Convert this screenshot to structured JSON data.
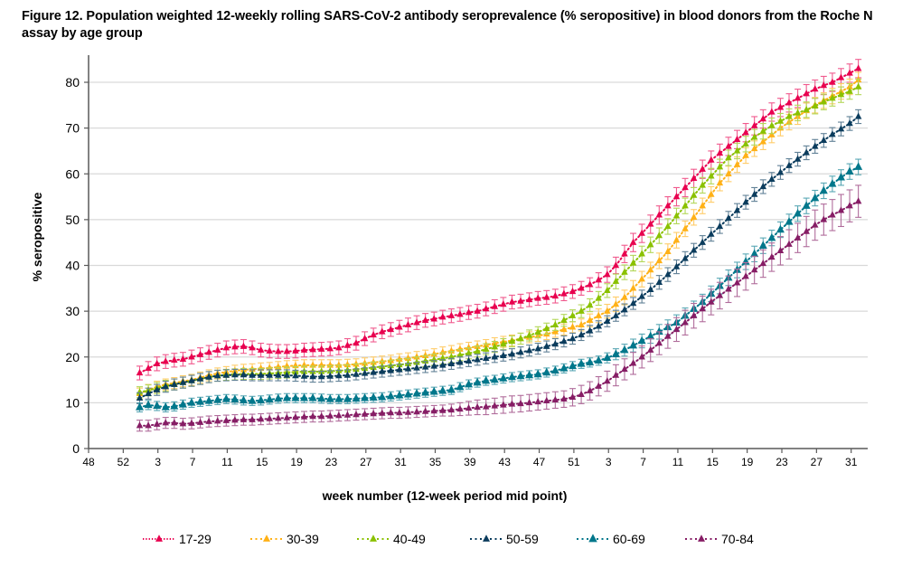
{
  "chart_data": {
    "type": "line",
    "title": "Figure 12. Population weighted 12-weekly rolling SARS-CoV-2 antibody seroprevalence (% seropositive) in blood donors from the Roche N assay by age group",
    "xlabel": "week number (12-week period mid point)",
    "ylabel": "% seropositive",
    "ylim": [
      0,
      80
    ],
    "yticks": [
      "0",
      "10",
      "20",
      "30",
      "40",
      "50",
      "60",
      "70",
      "80"
    ],
    "xticks": [
      "48",
      "52",
      "3",
      "7",
      "11",
      "15",
      "19",
      "23",
      "27",
      "31",
      "35",
      "39",
      "43",
      "47",
      "51",
      "3",
      "7",
      "11",
      "15",
      "19",
      "23",
      "27",
      "31"
    ],
    "grid": "horizontal",
    "legend_position": "bottom",
    "markers": "triangle",
    "error_bars": true,
    "series": [
      {
        "name": "17-29",
        "color": "#e8004f",
        "values": [
          16.5,
          17.5,
          18.5,
          19,
          19.3,
          19.5,
          20,
          20.5,
          21,
          21.5,
          22,
          22.2,
          22.3,
          22,
          21.5,
          21.3,
          21.2,
          21.2,
          21.3,
          21.5,
          21.6,
          21.7,
          21.8,
          22,
          22.5,
          23,
          24,
          24.8,
          25.5,
          26,
          26.5,
          27,
          27.5,
          28,
          28.3,
          28.7,
          29,
          29.3,
          29.7,
          30,
          30.5,
          31,
          31.5,
          32,
          32.2,
          32.5,
          32.8,
          33,
          33.3,
          33.8,
          34.3,
          35,
          35.8,
          36.8,
          38,
          40,
          42.5,
          45,
          47,
          49,
          51,
          53,
          55,
          57,
          59,
          61,
          63,
          64.5,
          66,
          67.5,
          69,
          70.5,
          72,
          73.5,
          74.5,
          75.5,
          76.5,
          77.5,
          78.5,
          79.3,
          80,
          81,
          82,
          83
        ],
        "err": [
          1.5,
          1.5,
          1.5,
          1.5,
          1.5,
          1.5,
          1.5,
          1.5,
          1.5,
          1.5,
          1.5,
          1.5,
          1.5,
          1.5,
          1.5,
          1.5,
          1.5,
          1.5,
          1.5,
          1.5,
          1.5,
          1.5,
          1.5,
          1.5,
          1.5,
          1.5,
          1.5,
          1.5,
          1.5,
          1.5,
          1.5,
          1.5,
          1.5,
          1.5,
          1.5,
          1.5,
          1.5,
          1.5,
          1.5,
          1.5,
          1.5,
          1.5,
          1.5,
          1.5,
          1.5,
          1.5,
          1.5,
          1.5,
          1.5,
          1.5,
          1.5,
          1.5,
          1.5,
          1.6,
          1.7,
          1.8,
          1.9,
          2,
          2,
          2,
          2,
          2,
          2,
          2,
          2,
          2,
          2,
          2,
          2,
          2,
          2,
          2,
          2,
          2,
          2,
          2,
          2,
          2,
          2,
          2,
          2,
          2,
          2,
          2
        ]
      },
      {
        "name": "30-39",
        "color": "#ffb117",
        "values": [
          12,
          12.8,
          13.5,
          14,
          14.3,
          14.7,
          15,
          15.5,
          16,
          16.4,
          16.7,
          17,
          17.2,
          17.3,
          17.5,
          17.6,
          17.8,
          18,
          18.1,
          18.2,
          18.2,
          18.2,
          18.2,
          18.2,
          18.3,
          18.4,
          18.6,
          18.8,
          19,
          19.2,
          19.5,
          19.7,
          20,
          20.3,
          20.6,
          21,
          21.3,
          21.7,
          22,
          22.3,
          22.6,
          23,
          23.3,
          23.6,
          24,
          24.3,
          24.6,
          25,
          25.5,
          26,
          26.5,
          27,
          28,
          29,
          30,
          31.5,
          33,
          35,
          37,
          39,
          41,
          43,
          45.5,
          48,
          50.5,
          53,
          55.5,
          58,
          60,
          62,
          64,
          65.5,
          67,
          68.5,
          70,
          71.3,
          72.5,
          73.8,
          75,
          76,
          77,
          78,
          79,
          80.5
        ],
        "err": [
          1.2,
          1.2,
          1.2,
          1.2,
          1.2,
          1.2,
          1.2,
          1.2,
          1.2,
          1.2,
          1.2,
          1.2,
          1.2,
          1.2,
          1.2,
          1.2,
          1.2,
          1.2,
          1.2,
          1.2,
          1.2,
          1.2,
          1.2,
          1.2,
          1.2,
          1.2,
          1.2,
          1.2,
          1.2,
          1.2,
          1.2,
          1.2,
          1.2,
          1.2,
          1.2,
          1.2,
          1.2,
          1.2,
          1.2,
          1.2,
          1.2,
          1.2,
          1.2,
          1.2,
          1.2,
          1.2,
          1.2,
          1.2,
          1.2,
          1.2,
          1.2,
          1.3,
          1.4,
          1.5,
          1.5,
          1.6,
          1.6,
          1.7,
          1.7,
          1.7,
          1.7,
          1.7,
          1.7,
          1.7,
          1.7,
          1.7,
          1.7,
          1.7,
          1.7,
          1.7,
          1.7,
          1.7,
          1.7,
          1.7,
          1.7,
          1.7,
          1.7,
          1.7,
          1.7,
          1.7,
          1.7,
          1.7,
          1.7,
          1.7
        ]
      },
      {
        "name": "40-49",
        "color": "#8ac100",
        "values": [
          12.3,
          12.7,
          13.2,
          13.7,
          14,
          14.4,
          14.8,
          15.2,
          15.6,
          15.9,
          16.1,
          16.2,
          16.3,
          16.3,
          16.3,
          16.4,
          16.5,
          16.6,
          16.7,
          16.8,
          16.8,
          16.8,
          16.9,
          17,
          17.1,
          17.3,
          17.5,
          17.7,
          17.9,
          18.1,
          18.3,
          18.5,
          18.8,
          19.1,
          19.4,
          19.7,
          20,
          20.4,
          20.8,
          21.2,
          21.7,
          22.2,
          22.8,
          23.4,
          24,
          24.7,
          25.4,
          26.2,
          27,
          28,
          29,
          30,
          31.3,
          32.8,
          34.5,
          36.5,
          38.5,
          40.5,
          42.5,
          44.5,
          46.5,
          48.5,
          50.8,
          53,
          55.3,
          57.5,
          59.5,
          61.5,
          63.5,
          65,
          66.5,
          68,
          69.3,
          70.5,
          71.5,
          72.5,
          73.3,
          74,
          74.8,
          75.7,
          76.5,
          77.3,
          78,
          79
        ],
        "err": [
          1.2,
          1.2,
          1.2,
          1.2,
          1.2,
          1.2,
          1.2,
          1.2,
          1.2,
          1.2,
          1.2,
          1.2,
          1.2,
          1.2,
          1.2,
          1.2,
          1.2,
          1.2,
          1.2,
          1.2,
          1.2,
          1.2,
          1.2,
          1.2,
          1.2,
          1.2,
          1.2,
          1.2,
          1.2,
          1.2,
          1.2,
          1.2,
          1.2,
          1.2,
          1.2,
          1.2,
          1.2,
          1.2,
          1.2,
          1.2,
          1.2,
          1.2,
          1.2,
          1.2,
          1.2,
          1.2,
          1.2,
          1.2,
          1.2,
          1.3,
          1.3,
          1.4,
          1.4,
          1.5,
          1.5,
          1.6,
          1.6,
          1.7,
          1.7,
          1.7,
          1.7,
          1.7,
          1.7,
          1.7,
          1.7,
          1.7,
          1.7,
          1.7,
          1.7,
          1.7,
          1.7,
          1.7,
          1.7,
          1.7,
          1.7,
          1.7,
          1.7,
          1.7,
          1.7,
          1.7,
          1.7,
          1.7,
          1.7,
          1.7
        ]
      },
      {
        "name": "50-59",
        "color": "#0b3c5d",
        "values": [
          11,
          12,
          12.8,
          13.5,
          14,
          14.4,
          14.8,
          15.2,
          15.6,
          15.9,
          16,
          16.1,
          16.1,
          16,
          16,
          16,
          16,
          16,
          15.9,
          15.8,
          15.7,
          15.7,
          15.8,
          15.9,
          16,
          16.2,
          16.4,
          16.6,
          16.8,
          17,
          17.2,
          17.4,
          17.6,
          17.8,
          18,
          18.2,
          18.5,
          18.8,
          19.1,
          19.4,
          19.7,
          20,
          20.3,
          20.6,
          21,
          21.4,
          21.8,
          22.3,
          22.8,
          23.4,
          24,
          24.8,
          25.7,
          26.7,
          27.8,
          29,
          30.3,
          31.7,
          33.2,
          34.7,
          36.3,
          38,
          39.7,
          41.5,
          43.3,
          45,
          46.8,
          48.5,
          50.3,
          52,
          53.8,
          55.5,
          57.2,
          58.8,
          60.3,
          61.8,
          63.2,
          64.6,
          66,
          67.3,
          68.6,
          69.8,
          71,
          72.5
        ],
        "err": [
          1.2,
          1.2,
          1.2,
          1.2,
          1.2,
          1.2,
          1.2,
          1.2,
          1.2,
          1.2,
          1.2,
          1.2,
          1.2,
          1.2,
          1.2,
          1.2,
          1.2,
          1.2,
          1.2,
          1.2,
          1.2,
          1.2,
          1.2,
          1.2,
          1.2,
          1.2,
          1.2,
          1.2,
          1.2,
          1.2,
          1.2,
          1.2,
          1.2,
          1.2,
          1.2,
          1.2,
          1.2,
          1.2,
          1.2,
          1.2,
          1.2,
          1.2,
          1.2,
          1.2,
          1.2,
          1.2,
          1.2,
          1.2,
          1.2,
          1.2,
          1.2,
          1.2,
          1.2,
          1.2,
          1.2,
          1.2,
          1.3,
          1.3,
          1.4,
          1.4,
          1.5,
          1.5,
          1.5,
          1.5,
          1.5,
          1.5,
          1.5,
          1.5,
          1.5,
          1.5,
          1.5,
          1.5,
          1.5,
          1.5,
          1.5,
          1.5,
          1.5,
          1.5,
          1.5,
          1.5,
          1.5,
          1.5,
          1.5,
          1.5
        ]
      },
      {
        "name": "60-69",
        "color": "#00778b",
        "values": [
          9,
          9.5,
          9.3,
          9,
          9.2,
          9.6,
          10,
          10.2,
          10.4,
          10.6,
          10.8,
          10.7,
          10.5,
          10.4,
          10.5,
          10.7,
          10.9,
          11,
          11,
          11,
          11,
          10.9,
          10.8,
          10.8,
          10.8,
          10.9,
          11,
          11.1,
          11.2,
          11.4,
          11.6,
          11.8,
          12,
          12.2,
          12.4,
          12.6,
          12.8,
          13.4,
          14,
          14.4,
          14.8,
          15,
          15.3,
          15.6,
          15.8,
          16,
          16.2,
          16.6,
          17,
          17.5,
          18,
          18.5,
          18.8,
          19.2,
          19.8,
          20.6,
          21.5,
          22.5,
          23.5,
          24.5,
          25.5,
          26.5,
          27.5,
          29,
          30.5,
          32,
          33.8,
          35.5,
          37.3,
          39,
          40.8,
          42.5,
          44.3,
          46,
          47.8,
          49.5,
          51.3,
          53,
          54.7,
          56.3,
          57.8,
          59.2,
          60.5,
          61.5
        ],
        "err": [
          1,
          1,
          1,
          1,
          1,
          1,
          1,
          1,
          1,
          1,
          1,
          1,
          1,
          1,
          1,
          1,
          1,
          1,
          1,
          1,
          1,
          1,
          1,
          1,
          1,
          1,
          1,
          1,
          1,
          1,
          1,
          1,
          1,
          1,
          1,
          1,
          1,
          1,
          1,
          1,
          1,
          1,
          1,
          1,
          1,
          1,
          1,
          1,
          1,
          1,
          1,
          1,
          1,
          1,
          1.1,
          1.2,
          1.3,
          1.4,
          1.5,
          1.5,
          1.6,
          1.6,
          1.7,
          1.7,
          1.7,
          1.7,
          1.7,
          1.7,
          1.7,
          1.7,
          1.7,
          1.7,
          1.7,
          1.7,
          1.7,
          1.7,
          1.7,
          1.7,
          1.7,
          1.7,
          1.7,
          1.7,
          1.7,
          1.7
        ]
      },
      {
        "name": "70-84",
        "color": "#861d65",
        "values": [
          5,
          5,
          5.3,
          5.6,
          5.6,
          5.4,
          5.5,
          5.7,
          5.9,
          6,
          6.1,
          6.2,
          6.3,
          6.3,
          6.4,
          6.5,
          6.6,
          6.7,
          6.8,
          6.9,
          7,
          7,
          7.1,
          7.2,
          7.3,
          7.4,
          7.5,
          7.6,
          7.7,
          7.8,
          7.8,
          7.9,
          8,
          8.1,
          8.2,
          8.3,
          8.4,
          8.6,
          8.8,
          9,
          9.1,
          9.3,
          9.5,
          9.7,
          9.8,
          10,
          10.2,
          10.4,
          10.6,
          10.8,
          11.2,
          11.8,
          12.6,
          13.6,
          14.7,
          16,
          17.3,
          18.6,
          20,
          21.5,
          23,
          24.5,
          26,
          27.5,
          29,
          30.5,
          32,
          33.4,
          34.8,
          36.2,
          37.6,
          39,
          40.4,
          41.8,
          43.2,
          44.6,
          46,
          47.4,
          48.8,
          50,
          51,
          52,
          53,
          54
        ],
        "err": [
          1.2,
          1.2,
          1.2,
          1.2,
          1.2,
          1.2,
          1.2,
          1.2,
          1.2,
          1.2,
          1.2,
          1.2,
          1.2,
          1.2,
          1.2,
          1.2,
          1.2,
          1.2,
          1.2,
          1.2,
          1.2,
          1.2,
          1.2,
          1.2,
          1.2,
          1.2,
          1.2,
          1.2,
          1.2,
          1.2,
          1.2,
          1.2,
          1.2,
          1.2,
          1.2,
          1.2,
          1.3,
          1.4,
          1.5,
          1.6,
          1.7,
          1.7,
          1.8,
          1.8,
          1.8,
          1.8,
          1.8,
          1.8,
          1.8,
          1.8,
          1.9,
          2,
          2,
          2.1,
          2.2,
          2.3,
          2.3,
          2.4,
          2.4,
          2.5,
          2.5,
          2.6,
          2.6,
          2.7,
          2.7,
          2.8,
          2.8,
          2.9,
          2.9,
          3,
          3,
          3,
          3,
          3.1,
          3.1,
          3.2,
          3.2,
          3.3,
          3.3,
          3.4,
          3.4,
          3.5,
          3.5,
          3.5
        ]
      }
    ]
  }
}
